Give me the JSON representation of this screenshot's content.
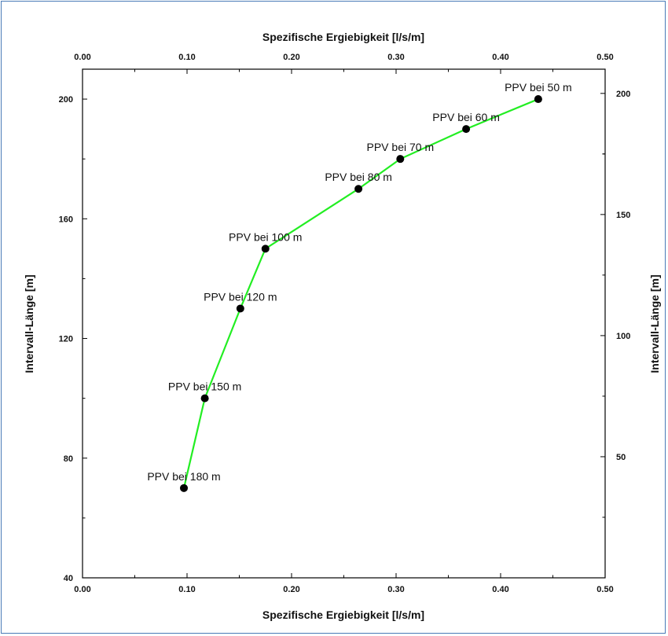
{
  "chart_data": {
    "type": "line",
    "x_label_top": "Spezifische Ergiebigkeit [l/s/m]",
    "x_label_bottom": "Spezifische Ergiebigkeit [l/s/m]",
    "y_label_left": "Intervall-Länge [m]",
    "y_label_right": "Intervall-Länge [m]",
    "xlim": [
      0.0,
      0.5
    ],
    "ylim_left": [
      40,
      210
    ],
    "ylim_right": [
      0,
      210
    ],
    "x_ticks": [
      "0.00",
      "0.10",
      "0.20",
      "0.30",
      "0.40",
      "0.50"
    ],
    "y_ticks_left": [
      "40",
      "80",
      "120",
      "160",
      "200"
    ],
    "y_ticks_right": [
      "50",
      "100",
      "150",
      "200"
    ],
    "grid": false,
    "line_color": "#22ee22",
    "marker_color": "#000000",
    "series": [
      {
        "points": [
          {
            "x": 0.097,
            "y": 70,
            "label": "PPV bei 180 m"
          },
          {
            "x": 0.117,
            "y": 100,
            "label": "PPV bei 150 m"
          },
          {
            "x": 0.151,
            "y": 130,
            "label": "PPV bei 120 m"
          },
          {
            "x": 0.175,
            "y": 150,
            "label": "PPV bei 100 m"
          },
          {
            "x": 0.264,
            "y": 170,
            "label": "PPV bei 80 m"
          },
          {
            "x": 0.304,
            "y": 180,
            "label": "PPV bei 70 m"
          },
          {
            "x": 0.367,
            "y": 190,
            "label": "PPV bei 60 m"
          },
          {
            "x": 0.436,
            "y": 200,
            "label": "PPV bei 50 m"
          }
        ]
      }
    ]
  }
}
